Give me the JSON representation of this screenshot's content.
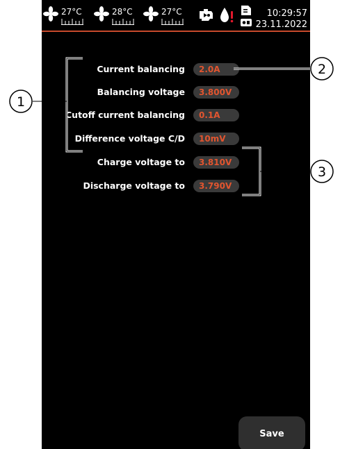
{
  "status_bar": {
    "temp_1": "27°C",
    "temp_2": "28°C",
    "temp_3": "27°C",
    "time": "10:29:57",
    "date": "23.11.2022",
    "icons": [
      "fan-icon",
      "fan-icon",
      "fan-icon",
      "engine-icon",
      "water-drop-alert-icon",
      "sd-card-icon"
    ],
    "accent_color": "#c84a2c"
  },
  "settings": [
    {
      "label": "Current balancing",
      "value": "2.0A"
    },
    {
      "label": "Balancing voltage",
      "value": "3.800V"
    },
    {
      "label": "Cutoff current balancing",
      "value": "0.1A"
    },
    {
      "label": "Difference voltage C/D",
      "value": "10mV"
    },
    {
      "label": "Charge voltage to",
      "value": "3.810V"
    },
    {
      "label": "Discharge voltage to",
      "value": "3.790V"
    }
  ],
  "save_label": "Save",
  "callouts": [
    "1",
    "2",
    "3"
  ],
  "colors": {
    "value_text": "#e2552f",
    "value_bg": "#3a3a3a",
    "screen_bg": "#000000"
  }
}
